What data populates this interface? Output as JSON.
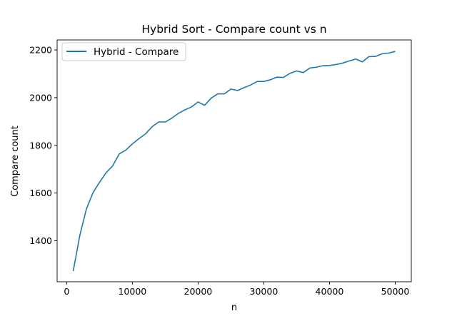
{
  "chart_data": {
    "type": "line",
    "title": "Hybrid Sort - Compare count vs n",
    "xlabel": "n",
    "ylabel": "Compare count",
    "xlim": [
      -1450,
      52450
    ],
    "ylim": [
      1228,
      2242
    ],
    "xticks": [
      0,
      10000,
      20000,
      30000,
      40000,
      50000
    ],
    "yticks": [
      1400,
      1600,
      1800,
      2000,
      2200
    ],
    "grid": false,
    "legend_position": "top-left",
    "series": [
      {
        "name": "Hybrid - Compare",
        "color": "#1f77b4",
        "x": [
          1000,
          2000,
          3000,
          4000,
          5000,
          6000,
          7000,
          8000,
          9000,
          10000,
          11000,
          12000,
          13000,
          14000,
          15000,
          16000,
          17000,
          18000,
          19000,
          20000,
          21000,
          22000,
          23000,
          24000,
          25000,
          26000,
          27000,
          28000,
          29000,
          30000,
          31000,
          32000,
          33000,
          34000,
          35000,
          36000,
          37000,
          38000,
          39000,
          40000,
          41000,
          42000,
          43000,
          44000,
          45000,
          46000,
          47000,
          48000,
          49000,
          50000
        ],
        "values": [
          1273,
          1422,
          1533,
          1601,
          1645,
          1685,
          1714,
          1764,
          1780,
          1806,
          1828,
          1848,
          1878,
          1898,
          1898,
          1914,
          1934,
          1949,
          1961,
          1982,
          1968,
          1998,
          2016,
          2016,
          2036,
          2030,
          2042,
          2053,
          2068,
          2068,
          2075,
          2086,
          2085,
          2102,
          2112,
          2105,
          2124,
          2128,
          2134,
          2135,
          2139,
          2145,
          2154,
          2162,
          2150,
          2172,
          2173,
          2184,
          2187,
          2194
        ]
      }
    ]
  }
}
